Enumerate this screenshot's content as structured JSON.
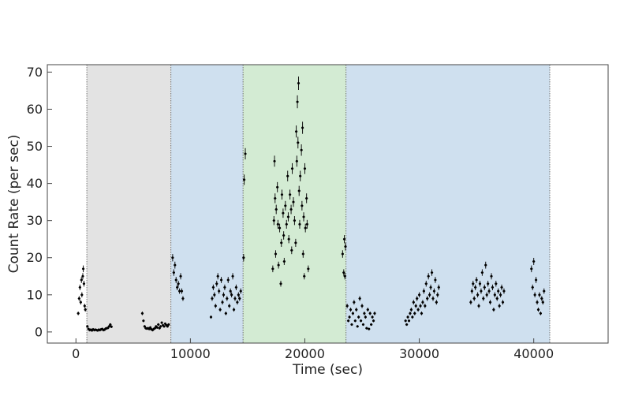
{
  "chart_data": {
    "type": "scatter",
    "title": "",
    "xlabel": "Time (sec)",
    "ylabel": "Count Rate (per sec)",
    "xlim": [
      -2500,
      46500
    ],
    "ylim": [
      -3,
      72
    ],
    "xticks": [
      0,
      10000,
      20000,
      30000,
      40000
    ],
    "yticks": [
      0,
      10,
      20,
      30,
      40,
      50,
      60,
      70
    ],
    "grid": false,
    "regions": [
      {
        "x0": 950,
        "x1": 8300,
        "color": "#e3e3e3"
      },
      {
        "x0": 8300,
        "x1": 14600,
        "color": "#cfe0ef"
      },
      {
        "x0": 14600,
        "x1": 23600,
        "color": "#d3ebd3"
      },
      {
        "x0": 23600,
        "x1": 41400,
        "color": "#cfe0ef"
      }
    ],
    "boundaries": [
      950,
      8300,
      14600,
      23600,
      41400
    ],
    "points": [
      [
        200,
        5
      ],
      [
        280,
        9
      ],
      [
        350,
        12
      ],
      [
        420,
        8
      ],
      [
        480,
        14
      ],
      [
        520,
        10
      ],
      [
        600,
        15
      ],
      [
        640,
        17
      ],
      [
        700,
        13
      ],
      [
        760,
        7
      ],
      [
        820,
        6
      ],
      [
        1000,
        1.5
      ],
      [
        1100,
        0.8
      ],
      [
        1200,
        0.5
      ],
      [
        1300,
        0.6
      ],
      [
        1400,
        0.4
      ],
      [
        1500,
        0.7
      ],
      [
        1600,
        0.5
      ],
      [
        1700,
        0.6
      ],
      [
        1800,
        0.5
      ],
      [
        1900,
        0.4
      ],
      [
        2000,
        0.6
      ],
      [
        2100,
        0.5
      ],
      [
        2200,
        0.7
      ],
      [
        2300,
        0.8
      ],
      [
        2400,
        0.5
      ],
      [
        2500,
        0.6
      ],
      [
        2600,
        0.9
      ],
      [
        2700,
        1.0
      ],
      [
        2800,
        1.1
      ],
      [
        2900,
        1.5
      ],
      [
        3000,
        2.0
      ],
      [
        3100,
        1.4
      ],
      [
        5800,
        5
      ],
      [
        5900,
        3
      ],
      [
        6000,
        1.5
      ],
      [
        6100,
        1.0
      ],
      [
        6200,
        0.9
      ],
      [
        6300,
        1.0
      ],
      [
        6400,
        0.8
      ],
      [
        6500,
        1.2
      ],
      [
        6600,
        0.7
      ],
      [
        6700,
        0.5
      ],
      [
        6800,
        0.8
      ],
      [
        6900,
        1.0
      ],
      [
        7000,
        1.5
      ],
      [
        7100,
        1.2
      ],
      [
        7200,
        2.0
      ],
      [
        7300,
        1.0
      ],
      [
        7400,
        1.5
      ],
      [
        7500,
        2.5
      ],
      [
        7600,
        1.8
      ],
      [
        7700,
        1.5
      ],
      [
        7800,
        2.2
      ],
      [
        7900,
        1.8
      ],
      [
        8000,
        1.5
      ],
      [
        8100,
        2.0
      ],
      [
        8450,
        20
      ],
      [
        8550,
        16
      ],
      [
        8650,
        18
      ],
      [
        8750,
        14
      ],
      [
        8850,
        12
      ],
      [
        8950,
        13
      ],
      [
        9050,
        11
      ],
      [
        9150,
        15
      ],
      [
        9250,
        11
      ],
      [
        9350,
        9
      ],
      [
        11800,
        4
      ],
      [
        11900,
        9
      ],
      [
        12000,
        12
      ],
      [
        12100,
        10
      ],
      [
        12200,
        7
      ],
      [
        12300,
        13
      ],
      [
        12400,
        15
      ],
      [
        12500,
        11
      ],
      [
        12600,
        6
      ],
      [
        12700,
        14
      ],
      [
        12800,
        8
      ],
      [
        12900,
        10
      ],
      [
        13000,
        12
      ],
      [
        13100,
        5
      ],
      [
        13200,
        9
      ],
      [
        13300,
        14
      ],
      [
        13400,
        7
      ],
      [
        13500,
        11
      ],
      [
        13600,
        10
      ],
      [
        13700,
        15
      ],
      [
        13800,
        6
      ],
      [
        13900,
        9
      ],
      [
        14000,
        12
      ],
      [
        14100,
        8
      ],
      [
        14200,
        10
      ],
      [
        14300,
        9
      ],
      [
        14400,
        11
      ],
      [
        14650,
        20
      ],
      [
        14700,
        41
      ],
      [
        14800,
        48
      ],
      [
        17200,
        17
      ],
      [
        17300,
        30
      ],
      [
        17350,
        46
      ],
      [
        17400,
        36
      ],
      [
        17450,
        21
      ],
      [
        17500,
        33
      ],
      [
        17600,
        39
      ],
      [
        17650,
        29
      ],
      [
        17700,
        18
      ],
      [
        17800,
        28
      ],
      [
        17900,
        13
      ],
      [
        17950,
        24
      ],
      [
        18000,
        37
      ],
      [
        18100,
        32
      ],
      [
        18150,
        26
      ],
      [
        18200,
        19
      ],
      [
        18300,
        34
      ],
      [
        18400,
        29
      ],
      [
        18500,
        42
      ],
      [
        18550,
        31
      ],
      [
        18600,
        25
      ],
      [
        18700,
        37
      ],
      [
        18800,
        33
      ],
      [
        18850,
        22
      ],
      [
        18900,
        44
      ],
      [
        19000,
        35
      ],
      [
        19100,
        30
      ],
      [
        19200,
        24
      ],
      [
        19250,
        54
      ],
      [
        19300,
        46
      ],
      [
        19350,
        62
      ],
      [
        19400,
        51
      ],
      [
        19450,
        67
      ],
      [
        19500,
        38
      ],
      [
        19550,
        29
      ],
      [
        19600,
        42
      ],
      [
        19700,
        49
      ],
      [
        19750,
        34
      ],
      [
        19800,
        55
      ],
      [
        19850,
        21
      ],
      [
        19900,
        31
      ],
      [
        19950,
        15
      ],
      [
        20000,
        44
      ],
      [
        20050,
        28
      ],
      [
        20150,
        36
      ],
      [
        20200,
        29
      ],
      [
        20300,
        17
      ],
      [
        23300,
        21
      ],
      [
        23400,
        16
      ],
      [
        23450,
        25
      ],
      [
        23500,
        15
      ],
      [
        23550,
        23
      ],
      [
        23700,
        7
      ],
      [
        23800,
        3
      ],
      [
        23900,
        4
      ],
      [
        24000,
        6
      ],
      [
        24100,
        2
      ],
      [
        24200,
        5
      ],
      [
        24300,
        8
      ],
      [
        24400,
        3
      ],
      [
        24500,
        6
      ],
      [
        24600,
        1.5
      ],
      [
        24700,
        4
      ],
      [
        24800,
        9
      ],
      [
        24900,
        3
      ],
      [
        25000,
        7
      ],
      [
        25100,
        2
      ],
      [
        25200,
        5
      ],
      [
        25300,
        4
      ],
      [
        25400,
        1
      ],
      [
        25500,
        6
      ],
      [
        25600,
        0.8
      ],
      [
        25700,
        5
      ],
      [
        25800,
        2
      ],
      [
        25900,
        4
      ],
      [
        26000,
        3
      ],
      [
        26100,
        5
      ],
      [
        28800,
        3
      ],
      [
        28900,
        2
      ],
      [
        29000,
        4
      ],
      [
        29100,
        3
      ],
      [
        29200,
        5
      ],
      [
        29300,
        6
      ],
      [
        29400,
        4
      ],
      [
        29500,
        8
      ],
      [
        29600,
        5
      ],
      [
        29700,
        7
      ],
      [
        29800,
        9
      ],
      [
        29900,
        6
      ],
      [
        30000,
        10
      ],
      [
        30100,
        7
      ],
      [
        30200,
        5
      ],
      [
        30300,
        8
      ],
      [
        30400,
        11
      ],
      [
        30500,
        7
      ],
      [
        30600,
        13
      ],
      [
        30700,
        9
      ],
      [
        30800,
        15
      ],
      [
        30900,
        10
      ],
      [
        31000,
        12
      ],
      [
        31100,
        16
      ],
      [
        31200,
        9
      ],
      [
        31300,
        11
      ],
      [
        31400,
        14
      ],
      [
        31500,
        8
      ],
      [
        31600,
        10
      ],
      [
        31700,
        12
      ],
      [
        34500,
        8
      ],
      [
        34600,
        11
      ],
      [
        34700,
        13
      ],
      [
        34800,
        9
      ],
      [
        34900,
        12
      ],
      [
        35000,
        14
      ],
      [
        35100,
        10
      ],
      [
        35200,
        7
      ],
      [
        35300,
        13
      ],
      [
        35400,
        11
      ],
      [
        35500,
        16
      ],
      [
        35600,
        9
      ],
      [
        35700,
        12
      ],
      [
        35800,
        18
      ],
      [
        35900,
        10
      ],
      [
        36000,
        13
      ],
      [
        36100,
        11
      ],
      [
        36200,
        8
      ],
      [
        36300,
        15
      ],
      [
        36400,
        12
      ],
      [
        36500,
        6
      ],
      [
        36600,
        10
      ],
      [
        36700,
        13
      ],
      [
        36800,
        9
      ],
      [
        36900,
        11
      ],
      [
        37000,
        7
      ],
      [
        37100,
        10
      ],
      [
        37200,
        12
      ],
      [
        37300,
        8
      ],
      [
        37400,
        11
      ],
      [
        39800,
        17
      ],
      [
        39900,
        12
      ],
      [
        40000,
        19
      ],
      [
        40100,
        10
      ],
      [
        40200,
        14
      ],
      [
        40300,
        8
      ],
      [
        40400,
        6
      ],
      [
        40500,
        10
      ],
      [
        40600,
        5
      ],
      [
        40700,
        9
      ],
      [
        40800,
        8
      ],
      [
        40900,
        11
      ]
    ]
  }
}
